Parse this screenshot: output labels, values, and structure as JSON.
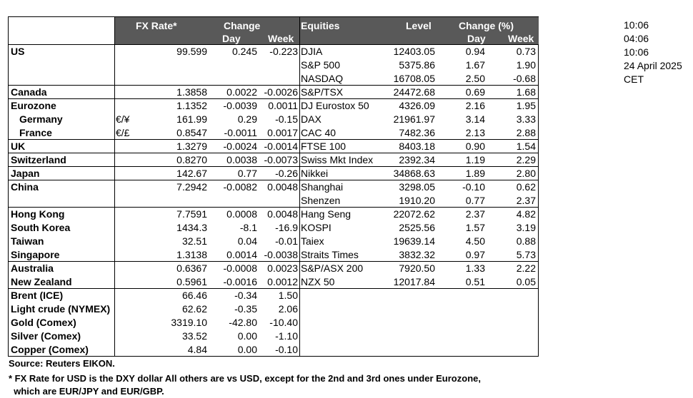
{
  "header": {
    "fx_rate": "FX Rate*",
    "change": "Change",
    "day": "Day",
    "week": "Week",
    "equities": "Equities",
    "level": "Level",
    "change_pct": "Change (%)",
    "day2": "Day",
    "week2": "Week"
  },
  "side": [
    "10:06",
    "04:06",
    "10:06",
    "24 April 2025",
    "CET"
  ],
  "rows": [
    {
      "label": "US",
      "sym": "",
      "fx": "99.599",
      "fday": "0.245",
      "fweek": "-0.223",
      "eq": "DJIA",
      "lvl": "12403.05",
      "eday": "0.94",
      "eweek": "0.73"
    },
    {
      "label": "",
      "sym": "",
      "fx": "",
      "fday": "",
      "fweek": "",
      "eq": "S&P 500",
      "lvl": "5375.86",
      "eday": "1.67",
      "eweek": "1.90"
    },
    {
      "label": "",
      "sym": "",
      "fx": "",
      "fday": "",
      "fweek": "",
      "eq": "NASDAQ",
      "lvl": "16708.05",
      "eday": "2.50",
      "eweek": "-0.68"
    },
    {
      "label": "Canada",
      "sym": "",
      "fx": "1.3858",
      "fday": "0.0022",
      "fweek": "-0.0026",
      "eq": "S&P/TSX",
      "lvl": "24472.68",
      "eday": "0.69",
      "eweek": "1.68"
    },
    {
      "label": "Eurozone",
      "sym": "",
      "fx": "1.1352",
      "fday": "-0.0039",
      "fweek": "0.0011",
      "eq": "DJ Eurostox 50",
      "lvl": "4326.09",
      "eday": "2.16",
      "eweek": "1.95"
    },
    {
      "label": "Germany",
      "sym": "€/¥",
      "fx": "161.99",
      "fday": "0.29",
      "fweek": "-0.15",
      "eq": "DAX",
      "lvl": "21961.97",
      "eday": "3.14",
      "eweek": "3.33"
    },
    {
      "label": "France",
      "sym": "€/£",
      "fx": "0.8547",
      "fday": "-0.0011",
      "fweek": "0.0017",
      "eq": "CAC 40",
      "lvl": "7482.36",
      "eday": "2.13",
      "eweek": "2.88"
    },
    {
      "label": "UK",
      "sym": "",
      "fx": "1.3279",
      "fday": "-0.0024",
      "fweek": "-0.0014",
      "eq": "FTSE 100",
      "lvl": "8403.18",
      "eday": "0.90",
      "eweek": "1.54"
    },
    {
      "label": "Switzerland",
      "sym": "",
      "fx": "0.8270",
      "fday": "0.0038",
      "fweek": "-0.0073",
      "eq": "Swiss Mkt Index",
      "lvl": "2392.34",
      "eday": "1.19",
      "eweek": "2.29"
    },
    {
      "label": "Japan",
      "sym": "",
      "fx": "142.67",
      "fday": "0.77",
      "fweek": "-0.26",
      "eq": "Nikkei",
      "lvl": "34868.63",
      "eday": "1.89",
      "eweek": "2.80"
    },
    {
      "label": "China",
      "sym": "",
      "fx": "7.2942",
      "fday": "-0.0082",
      "fweek": "0.0048",
      "eq": "Shanghai",
      "lvl": "3298.05",
      "eday": "-0.10",
      "eweek": "0.62"
    },
    {
      "label": "",
      "sym": "",
      "fx": "",
      "fday": "",
      "fweek": "",
      "eq": "Shenzen",
      "lvl": "1910.20",
      "eday": "0.77",
      "eweek": "2.37"
    },
    {
      "label": "Hong Kong",
      "sym": "",
      "fx": "7.7591",
      "fday": "0.0008",
      "fweek": "0.0048",
      "eq": "Hang Seng",
      "lvl": "22072.62",
      "eday": "2.37",
      "eweek": "4.82"
    },
    {
      "label": "South Korea",
      "sym": "",
      "fx": "1434.3",
      "fday": "-8.1",
      "fweek": "-16.9",
      "eq": "KOSPI",
      "lvl": "2525.56",
      "eday": "1.57",
      "eweek": "3.19"
    },
    {
      "label": "Taiwan",
      "sym": "",
      "fx": "32.51",
      "fday": "0.04",
      "fweek": "-0.01",
      "eq": "Taiex",
      "lvl": "19639.14",
      "eday": "4.50",
      "eweek": "0.88"
    },
    {
      "label": "Singapore",
      "sym": "",
      "fx": "1.3138",
      "fday": "0.0014",
      "fweek": "-0.0038",
      "eq": "Straits Times",
      "lvl": "3832.32",
      "eday": "0.97",
      "eweek": "5.73"
    },
    {
      "label": "Australia",
      "sym": "",
      "fx": "0.6367",
      "fday": "-0.0008",
      "fweek": "0.0023",
      "eq": "S&P/ASX  200",
      "lvl": "7920.50",
      "eday": "1.33",
      "eweek": "2.22"
    },
    {
      "label": "New Zealand",
      "sym": "",
      "fx": "0.5961",
      "fday": "-0.0016",
      "fweek": "0.0012",
      "eq": "NZX 50",
      "lvl": "12017.84",
      "eday": "0.51",
      "eweek": "0.05"
    },
    {
      "label": "Brent (ICE)",
      "sym": "",
      "fx": "66.46",
      "fday": "-0.34",
      "fweek": "1.50",
      "eq": "",
      "lvl": "",
      "eday": "",
      "eweek": ""
    },
    {
      "label": "Light crude (NYMEX)",
      "sym": "",
      "fx": "62.62",
      "fday": "-0.35",
      "fweek": "2.06",
      "eq": "",
      "lvl": "",
      "eday": "",
      "eweek": ""
    },
    {
      "label": "Gold (Comex)",
      "sym": "",
      "fx": "3319.10",
      "fday": "-42.80",
      "fweek": "-10.40",
      "eq": "",
      "lvl": "",
      "eday": "",
      "eweek": ""
    },
    {
      "label": "Silver (Comex)",
      "sym": "",
      "fx": "33.52",
      "fday": "0.00",
      "fweek": "-1.10",
      "eq": "",
      "lvl": "",
      "eday": "",
      "eweek": ""
    },
    {
      "label": "Copper (Comex)",
      "sym": "",
      "fx": "4.84",
      "fday": "0.00",
      "fweek": "-0.10",
      "eq": "",
      "lvl": "",
      "eday": "",
      "eweek": ""
    }
  ],
  "notes": {
    "source": "Source:  Reuters EIKON.",
    "footnote1": "* FX Rate for USD is the DXY dollar  All others are vs USD, except for the 2nd and 3rd ones under Eurozone,",
    "footnote2": "  which are EUR/JPY and EUR/GBP."
  }
}
